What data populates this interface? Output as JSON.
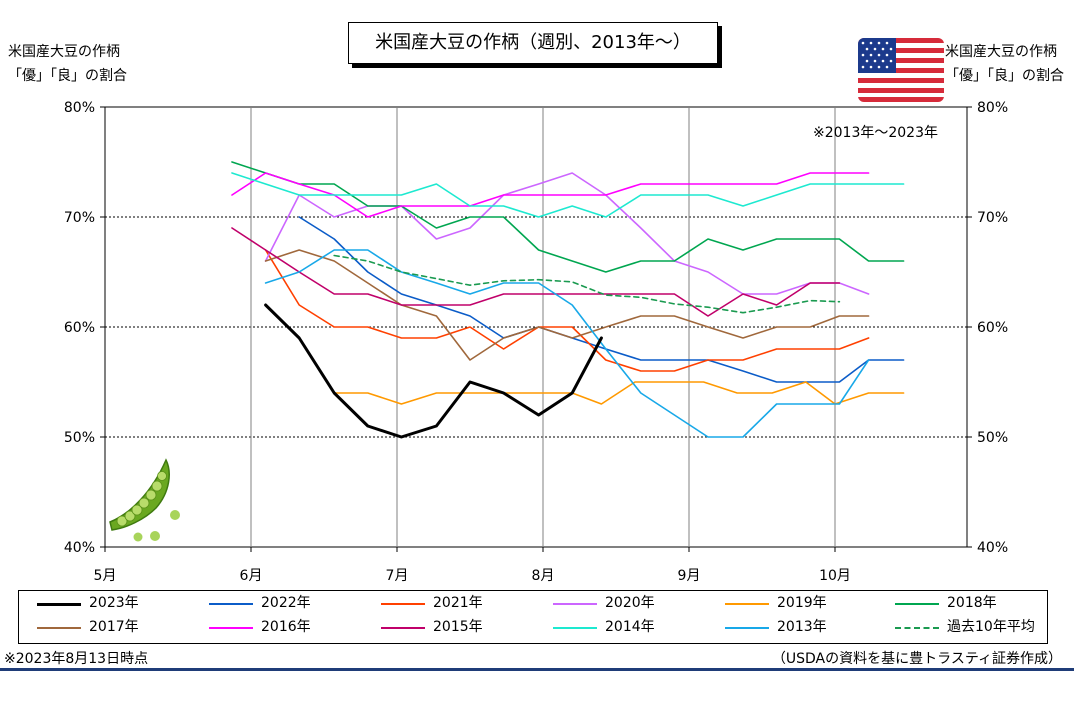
{
  "title": "米国産大豆の作柄（週別、2013年～）",
  "left_axis_caption": [
    "米国産大豆の作柄",
    "「優」「良」の割合"
  ],
  "right_axis_caption": [
    "米国産大豆の作柄",
    "「優」「良」の割合"
  ],
  "range_note": "※2013年～2023年",
  "footnote_left": "※2023年8月13日時点",
  "footnote_right": "（USDAの資料を基に豊トラスティ証券作成）",
  "chart_data": {
    "type": "line",
    "x_unit": "month (5 = May 1)",
    "x_range": [
      5,
      10.9
    ],
    "x_ticks": [
      5,
      6,
      7,
      8,
      9,
      10
    ],
    "x_tick_labels": [
      "5月",
      "6月",
      "7月",
      "8月",
      "9月",
      "10月"
    ],
    "ylim": [
      40,
      80
    ],
    "y_ticks": [
      40,
      50,
      60,
      70,
      80
    ],
    "y_tick_labels": [
      "40%",
      "50%",
      "60%",
      "70%",
      "80%"
    ],
    "y_tick_labels_right": [
      "40%",
      "50%",
      "60%",
      "70%",
      "80%"
    ],
    "grid": "dotted horizontal at 50/60/70, solid vertical at month starts",
    "series": [
      {
        "name": "2023年",
        "color": "#000000",
        "width": 3,
        "dash": "",
        "x": [
          6.1,
          6.33,
          6.57,
          6.8,
          7.03,
          7.27,
          7.5,
          7.73,
          7.97,
          8.2,
          8.4
        ],
        "y": [
          62,
          59,
          54,
          51,
          50,
          51,
          55,
          54,
          52,
          54,
          59
        ]
      },
      {
        "name": "2022年",
        "color": "#0b5cc8",
        "width": 1.6,
        "dash": "",
        "x": [
          6.33,
          6.57,
          6.8,
          7.03,
          7.27,
          7.5,
          7.73,
          7.97,
          8.2,
          8.43,
          8.67,
          8.9,
          9.13,
          9.37,
          9.6,
          9.83,
          10.03,
          10.23,
          10.47
        ],
        "y": [
          70,
          68,
          65,
          63,
          62,
          61,
          59,
          60,
          59,
          58,
          57,
          57,
          57,
          56,
          55,
          55,
          55,
          57,
          57
        ]
      },
      {
        "name": "2021年",
        "color": "#ff4000",
        "width": 1.6,
        "dash": "",
        "x": [
          6.1,
          6.33,
          6.57,
          6.8,
          7.03,
          7.27,
          7.5,
          7.73,
          7.97,
          8.2,
          8.43,
          8.67,
          8.9,
          9.13,
          9.37,
          9.6,
          9.83,
          10.03,
          10.23
        ],
        "y": [
          67,
          62,
          60,
          60,
          59,
          59,
          60,
          58,
          60,
          60,
          57,
          56,
          56,
          57,
          57,
          58,
          58,
          58,
          59
        ]
      },
      {
        "name": "2020年",
        "color": "#cc66ff",
        "width": 1.6,
        "dash": "",
        "x": [
          6.1,
          6.33,
          6.57,
          6.8,
          7.03,
          7.27,
          7.5,
          7.73,
          7.97,
          8.2,
          8.43,
          8.67,
          8.9,
          9.13,
          9.37,
          9.6,
          9.83,
          10.03,
          10.23
        ],
        "y": [
          66,
          72,
          70,
          71,
          71,
          68,
          69,
          72,
          73,
          74,
          72,
          69,
          66,
          65,
          63,
          63,
          64,
          64,
          63
        ]
      },
      {
        "name": "2019年",
        "color": "#ff9900",
        "width": 1.6,
        "dash": "",
        "x": [
          6.57,
          6.8,
          7.03,
          7.27,
          7.5,
          7.73,
          7.97,
          8.2,
          8.4,
          8.63,
          8.87,
          9.1,
          9.33,
          9.57,
          9.8,
          10.0,
          10.23,
          10.47
        ],
        "y": [
          54,
          54,
          53,
          54,
          54,
          54,
          54,
          54,
          53,
          55,
          55,
          55,
          54,
          54,
          55,
          53,
          54,
          54
        ]
      },
      {
        "name": "2018年",
        "color": "#00a650",
        "width": 1.6,
        "dash": "",
        "x": [
          5.87,
          6.1,
          6.33,
          6.57,
          6.8,
          7.03,
          7.27,
          7.5,
          7.73,
          7.97,
          8.2,
          8.43,
          8.67,
          8.9,
          9.13,
          9.37,
          9.6,
          9.83,
          10.03,
          10.23,
          10.47
        ],
        "y": [
          75,
          74,
          73,
          73,
          71,
          71,
          69,
          70,
          70,
          67,
          66,
          65,
          66,
          66,
          68,
          67,
          68,
          68,
          68,
          66,
          66
        ]
      },
      {
        "name": "2017年",
        "color": "#a0683c",
        "width": 1.6,
        "dash": "",
        "x": [
          6.1,
          6.33,
          6.57,
          6.8,
          7.03,
          7.27,
          7.5,
          7.73,
          7.97,
          8.2,
          8.43,
          8.67,
          8.9,
          9.13,
          9.37,
          9.6,
          9.83,
          10.03,
          10.23
        ],
        "y": [
          66,
          67,
          66,
          64,
          62,
          61,
          57,
          59,
          60,
          59,
          60,
          61,
          61,
          60,
          59,
          60,
          60,
          61,
          61
        ]
      },
      {
        "name": "2016年",
        "color": "#ff00ff",
        "width": 1.6,
        "dash": "",
        "x": [
          5.87,
          6.1,
          6.33,
          6.57,
          6.8,
          7.03,
          7.27,
          7.5,
          7.73,
          7.97,
          8.2,
          8.43,
          8.67,
          8.9,
          9.13,
          9.37,
          9.6,
          9.83,
          10.03,
          10.23
        ],
        "y": [
          72,
          74,
          73,
          72,
          70,
          71,
          71,
          71,
          72,
          72,
          72,
          72,
          73,
          73,
          73,
          73,
          73,
          74,
          74,
          74
        ]
      },
      {
        "name": "2015年",
        "color": "#c0006a",
        "width": 1.6,
        "dash": "",
        "x": [
          5.87,
          6.1,
          6.33,
          6.57,
          6.8,
          7.03,
          7.27,
          7.5,
          7.73,
          7.97,
          8.2,
          8.43,
          8.67,
          8.9,
          9.13,
          9.37,
          9.6,
          9.83,
          10.03
        ],
        "y": [
          69,
          67,
          65,
          63,
          63,
          62,
          62,
          62,
          63,
          63,
          63,
          63,
          63,
          63,
          61,
          63,
          62,
          64,
          64
        ]
      },
      {
        "name": "2014年",
        "color": "#1de9d0",
        "width": 1.6,
        "dash": "",
        "x": [
          5.87,
          6.1,
          6.33,
          6.57,
          6.8,
          7.03,
          7.27,
          7.5,
          7.73,
          7.97,
          8.2,
          8.43,
          8.67,
          8.9,
          9.13,
          9.37,
          9.6,
          9.83,
          10.03,
          10.23,
          10.47
        ],
        "y": [
          74,
          73,
          72,
          72,
          72,
          72,
          73,
          71,
          71,
          70,
          71,
          70,
          72,
          72,
          72,
          71,
          72,
          73,
          73,
          73,
          73
        ]
      },
      {
        "name": "2013年",
        "color": "#18a8e8",
        "width": 1.6,
        "dash": "",
        "x": [
          6.1,
          6.33,
          6.57,
          6.8,
          7.03,
          7.27,
          7.5,
          7.73,
          7.97,
          8.2,
          8.43,
          8.67,
          8.9,
          9.13,
          9.37,
          9.6,
          9.83,
          10.03,
          10.23
        ],
        "y": [
          64,
          65,
          67,
          67,
          65,
          64,
          63,
          64,
          64,
          62,
          58,
          54,
          52,
          50,
          50,
          53,
          53,
          53,
          57
        ]
      },
      {
        "name": "過去10年平均",
        "color": "#1a9a50",
        "width": 1.6,
        "dash": "5,4",
        "x": [
          6.57,
          6.8,
          7.03,
          7.27,
          7.5,
          7.73,
          7.97,
          8.2,
          8.43,
          8.67,
          8.9,
          9.13,
          9.37,
          9.6,
          9.83,
          10.03
        ],
        "y": [
          66.5,
          66.0,
          65.0,
          64.4,
          63.8,
          64.2,
          64.3,
          64.1,
          62.9,
          62.7,
          62.1,
          61.8,
          61.3,
          61.8,
          62.4,
          62.3
        ]
      }
    ]
  }
}
